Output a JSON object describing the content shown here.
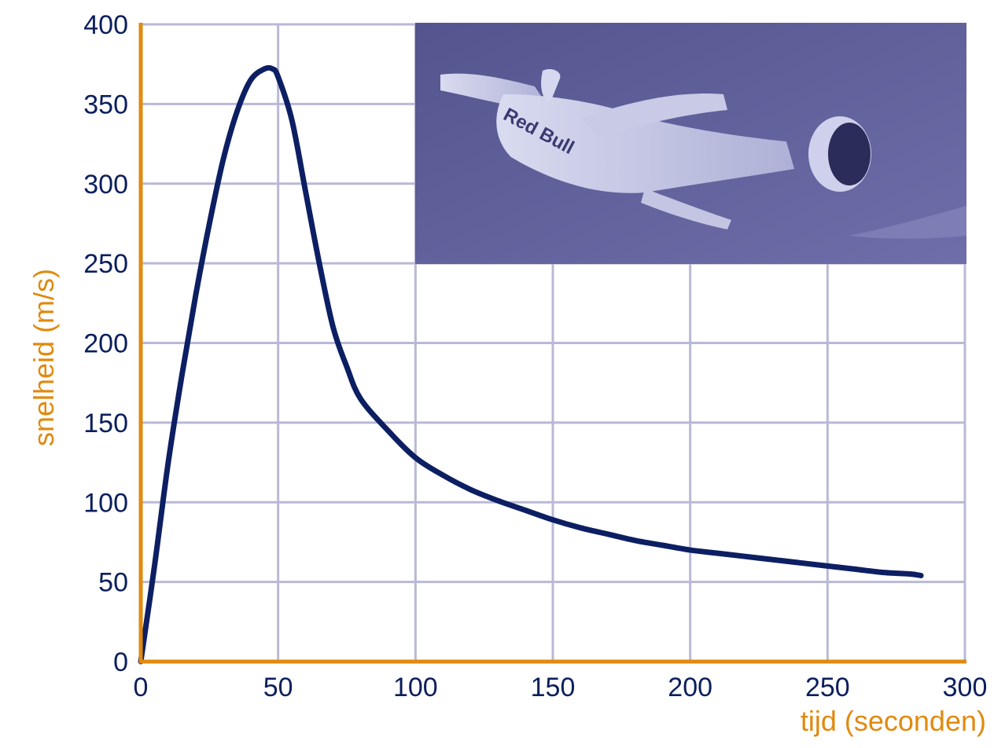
{
  "chart_data": {
    "type": "line",
    "title": "",
    "xlabel": "tijd (seconden)",
    "ylabel": "snelheid (m/s)",
    "xlim": [
      0,
      300
    ],
    "ylim": [
      0,
      400
    ],
    "x_ticks": [
      0,
      50,
      100,
      150,
      200,
      250,
      300
    ],
    "y_ticks": [
      0,
      50,
      100,
      150,
      200,
      250,
      300,
      350,
      400
    ],
    "grid": true,
    "colors": {
      "axis": "#e08a0f",
      "grid": "#b9b9d6",
      "line": "#0d1f63",
      "tick_text": "#0b1f5c",
      "photo_bg": "#5e5e98"
    },
    "inset_image": {
      "description_icon": "skydiver-photo",
      "logo_text": "Red Bull"
    },
    "series": [
      {
        "x": [
          0,
          5,
          10,
          15,
          20,
          25,
          30,
          35,
          40,
          45,
          48,
          50,
          55,
          60,
          65,
          70,
          75,
          80,
          90,
          100,
          110,
          120,
          130,
          140,
          150,
          160,
          170,
          180,
          190,
          200,
          210,
          220,
          230,
          240,
          250,
          260,
          270,
          280,
          284
        ],
        "y": [
          0,
          60,
          125,
          180,
          230,
          275,
          315,
          345,
          365,
          372,
          372,
          367,
          340,
          295,
          250,
          210,
          185,
          165,
          145,
          128,
          117,
          108,
          101,
          95,
          89,
          84,
          80,
          76,
          73,
          70,
          68,
          66,
          64,
          62,
          60,
          58,
          56,
          55,
          54
        ]
      }
    ]
  }
}
